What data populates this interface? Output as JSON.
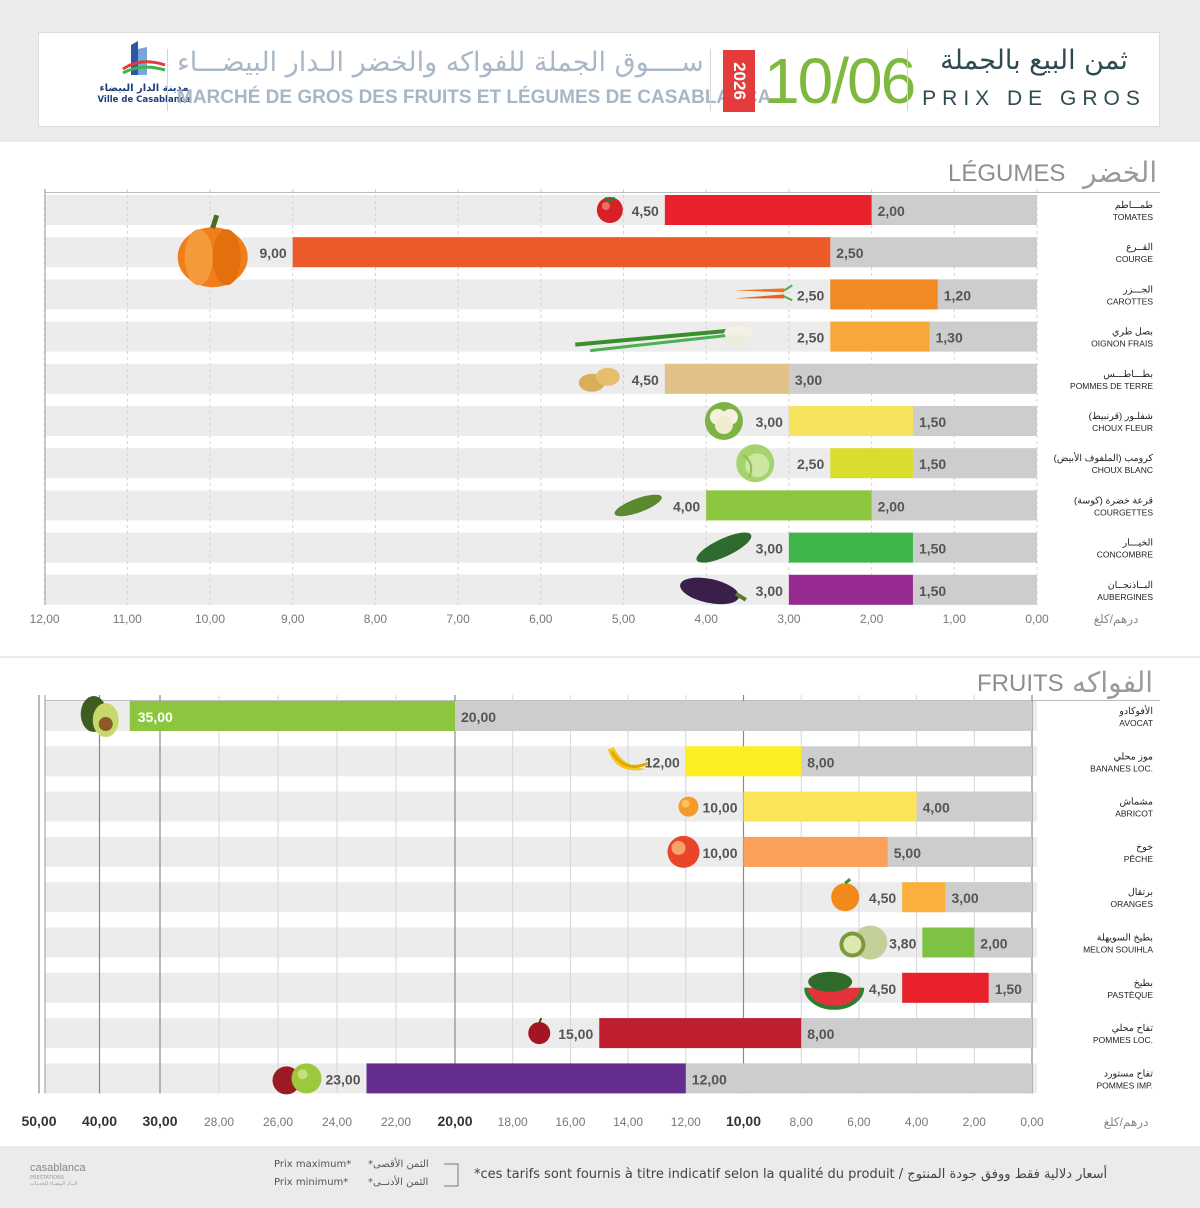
{
  "header": {
    "logo_ar": "مدينة الدار البيضاء",
    "logo_fr": "Ville de Casablanca",
    "market_ar": "ســــوق الجملة للفواكه والخضر الـدار البيضـــاء",
    "market_fr": "MARCHÉ DE GROS DES FRUITS ET LÉGUMES DE CASABLANCA",
    "year": "2026",
    "date": "10/06",
    "prix_ar": "ثمن البيع بالجملة",
    "prix_fr": "PRIX DE GROS"
  },
  "colors": {
    "accent_green": "#7fb83e",
    "accent_red": "#e43c3c",
    "min_bar_gray": "#cdcdcd",
    "row_band": "#ececec"
  },
  "chart_data": [
    {
      "type": "bar",
      "orientation": "horizontal",
      "section_fr": "LÉGUMES",
      "section_ar": "الخضر",
      "unit_label": "درهم/كلغ",
      "xlim": [
        0,
        12
      ],
      "x_ticks": [
        "0,00",
        "1,00",
        "2,00",
        "3,00",
        "4,00",
        "5,00",
        "6,00",
        "7,00",
        "8,00",
        "9,00",
        "10,00",
        "11,00",
        "12,00"
      ],
      "grid": true,
      "categories": [
        {
          "fr": "TOMATES",
          "ar": "طمـــاطم",
          "max": 4.5,
          "min": 2.0,
          "max_label": "4,50",
          "min_label": "2,00",
          "color": "#e8212d",
          "icon": "tomato-icon"
        },
        {
          "fr": "COURGE",
          "ar": "القــرع",
          "max": 9.0,
          "min": 2.5,
          "max_label": "9,00",
          "min_label": "2,50",
          "color": "#ec5a2a",
          "icon": "pumpkin-icon"
        },
        {
          "fr": "CAROTTES",
          "ar": "الجـــزر",
          "max": 2.5,
          "min": 1.2,
          "max_label": "2,50",
          "min_label": "1,20",
          "color": "#f18a22",
          "icon": "carrot-icon"
        },
        {
          "fr": "OIGNON FRAIS",
          "ar": "بصل طري",
          "max": 2.5,
          "min": 1.3,
          "max_label": "2,50",
          "min_label": "1,30",
          "color": "#f6a83a",
          "icon": "green-onion-icon"
        },
        {
          "fr": "POMMES DE TERRE",
          "ar": "بطـــاطـــس",
          "max": 4.5,
          "min": 3.0,
          "max_label": "4,50",
          "min_label": "3,00",
          "color": "#e2c08a",
          "icon": "potato-icon"
        },
        {
          "fr": "CHOUX FLEUR",
          "ar": "شفلـور (قرنبيط)",
          "max": 3.0,
          "min": 1.5,
          "max_label": "3,00",
          "min_label": "1,50",
          "color": "#f7e35c",
          "icon": "cauliflower-icon"
        },
        {
          "fr": "CHOUX BLANC",
          "ar": "كرومب (الملفوف الأبيض)",
          "max": 2.5,
          "min": 1.5,
          "max_label": "2,50",
          "min_label": "1,50",
          "color": "#d9dd2e",
          "icon": "cabbage-icon"
        },
        {
          "fr": "COURGETTES",
          "ar": "قرعة خضرة (كوسة)",
          "max": 4.0,
          "min": 2.0,
          "max_label": "4,00",
          "min_label": "2,00",
          "color": "#8cc63f",
          "icon": "zucchini-icon"
        },
        {
          "fr": "CONCOMBRE",
          "ar": "الخيـــار",
          "max": 3.0,
          "min": 1.5,
          "max_label": "3,00",
          "min_label": "1,50",
          "color": "#3db54a",
          "icon": "cucumber-icon"
        },
        {
          "fr": "AUBERGINES",
          "ar": "البــاذنجــان",
          "max": 3.0,
          "min": 1.5,
          "max_label": "3,00",
          "min_label": "1,50",
          "color": "#962a91",
          "icon": "eggplant-icon"
        }
      ]
    },
    {
      "type": "bar",
      "orientation": "horizontal",
      "section_fr": "FRUITS",
      "section_ar": "الفواكه",
      "unit_label": "درهم/كلغ",
      "x_scale": "piecewise: 0-20 linear, 20-50 compressed",
      "xlim": [
        0,
        50
      ],
      "x_ticks": [
        "0,00",
        "2,00",
        "4,00",
        "6,00",
        "8,00",
        "10,00",
        "12,00",
        "14,00",
        "16,00",
        "18,00",
        "20,00",
        "22,00",
        "24,00",
        "26,00",
        "28,00",
        "30,00",
        "40,00",
        "50,00"
      ],
      "grid": true,
      "categories": [
        {
          "fr": "AVOCAT",
          "ar": "الأفوكادو",
          "max": 35.0,
          "min": 20.0,
          "max_label": "35,00",
          "min_label": "20,00",
          "color": "#8cc63f",
          "icon": "avocado-icon"
        },
        {
          "fr": "BANANES LOC.",
          "ar": "موز محلي",
          "max": 12.0,
          "min": 8.0,
          "max_label": "12,00",
          "min_label": "8,00",
          "color": "#fdee21",
          "icon": "banana-icon"
        },
        {
          "fr": "ABRICOT",
          "ar": "مشماش",
          "max": 10.0,
          "min": 4.0,
          "max_label": "10,00",
          "min_label": "4,00",
          "color": "#fce459",
          "icon": "apricot-icon"
        },
        {
          "fr": "PÊCHE",
          "ar": "خوخ",
          "max": 10.0,
          "min": 5.0,
          "max_label": "10,00",
          "min_label": "5,00",
          "color": "#fba05a",
          "icon": "peach-icon"
        },
        {
          "fr": "ORANGES",
          "ar": "برتقال",
          "max": 4.5,
          "min": 3.0,
          "max_label": "4,50",
          "min_label": "3,00",
          "color": "#fbb03b",
          "icon": "orange-icon"
        },
        {
          "fr": "MELON SOUIHLA",
          "ar": "بطيخ السويهلة",
          "max": 3.8,
          "min": 2.0,
          "max_label": "3,80",
          "min_label": "2,00",
          "color": "#7dc242",
          "icon": "melon-icon"
        },
        {
          "fr": "PASTÈQUE",
          "ar": "بطيخ",
          "max": 4.5,
          "min": 1.5,
          "max_label": "4,50",
          "min_label": "1,50",
          "color": "#e8212d",
          "icon": "watermelon-icon"
        },
        {
          "fr": "POMMES LOC.",
          "ar": "تفاح محلي",
          "max": 15.0,
          "min": 8.0,
          "max_label": "15,00",
          "min_label": "8,00",
          "color": "#be1e2d",
          "icon": "apple-icon"
        },
        {
          "fr": "POMMES IMP.",
          "ar": "تفاح مستورد",
          "max": 23.0,
          "min": 12.0,
          "max_label": "23,00",
          "min_label": "12,00",
          "color": "#662d91",
          "icon": "apples-icon"
        }
      ]
    }
  ],
  "footer": {
    "logo_name": "casablanca",
    "logo_sub1": "PRESTATIONS",
    "logo_sub2": "الـدار البيضـاء للخدمات",
    "prix_max_fr": "Prix maximum*",
    "prix_min_fr": "Prix minimum*",
    "prix_max_ar": "*الثمن الأقصى",
    "prix_min_ar": "*الثمن الأدنــى",
    "disclaimer": "*ces tarifs sont fournis à titre indicatif selon la qualité du produit  /  أسعار دلالية فقط ووفق جودة المنتوج"
  }
}
